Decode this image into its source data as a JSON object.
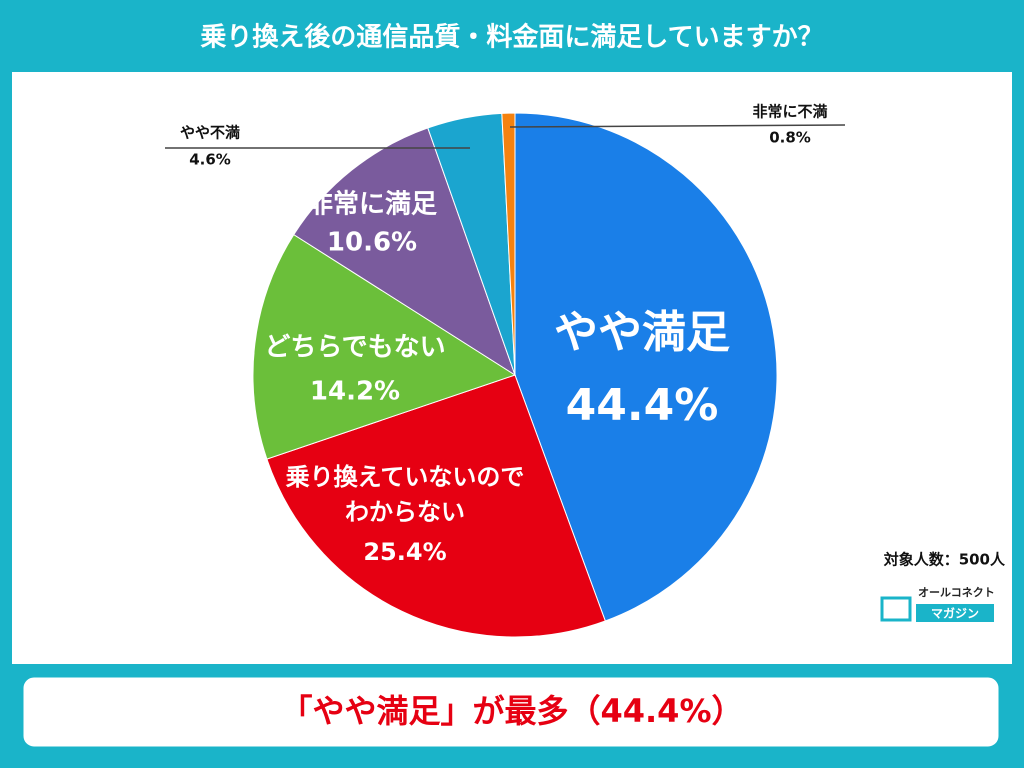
{
  "chart_data": {
    "type": "pie",
    "title": "乗り換え後の通信品質・料金面に満足していますか？",
    "categories": [
      "やや満足",
      "乗り換えていないので\nわからない",
      "どちらでもない",
      "非常に満足",
      "やや不満",
      "非常に不満"
    ],
    "values": [
      44.4,
      25.4,
      14.2,
      10.6,
      4.6,
      0.8
    ],
    "value_labels": [
      "44.4%",
      "25.4%",
      "14.2%",
      "10.6%",
      "4.6%",
      "0.8%"
    ],
    "colors": [
      "#1a7fe8",
      "#e60012",
      "#6bbf3a",
      "#7a5b9d",
      "#1ba5cf",
      "#f5820f"
    ],
    "note": "対象人数：500人"
  },
  "logo": {
    "line1": "オールコネクト",
    "line2": "マガジン"
  },
  "headline": "「やや満足」が最多（44.4%）"
}
